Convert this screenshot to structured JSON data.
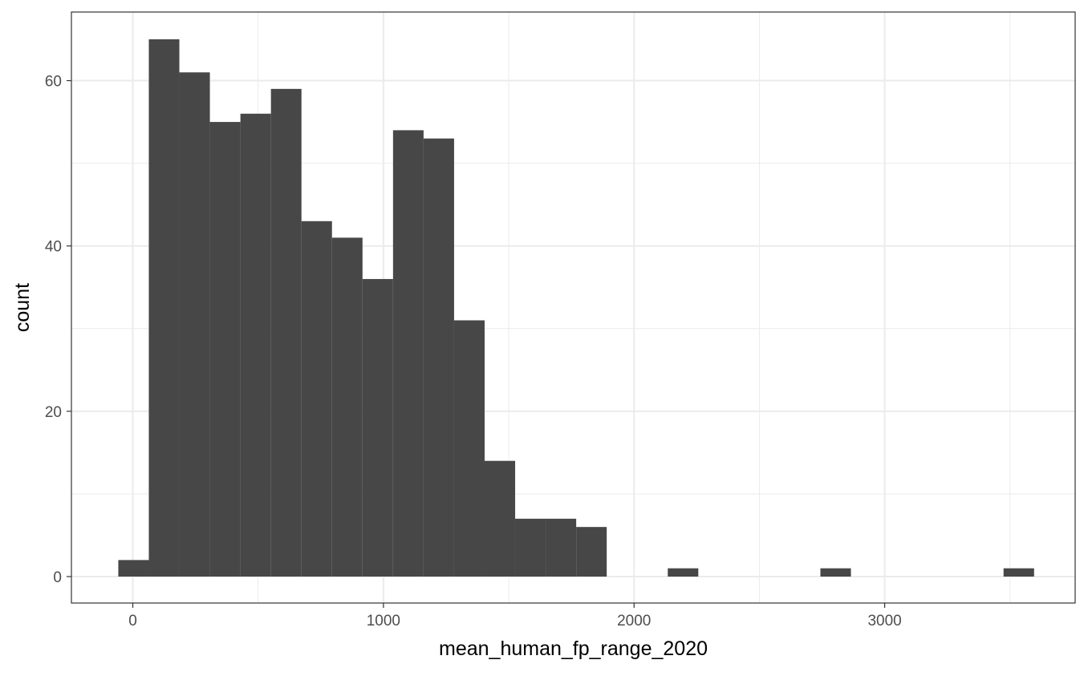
{
  "chart_data": {
    "type": "bar",
    "subtype": "histogram",
    "xlabel": "mean_human_fp_range_2020",
    "ylabel": "count",
    "xlim": [
      -245,
      3760
    ],
    "ylim": [
      -3.2,
      68.3
    ],
    "x_ticks": [
      0,
      1000,
      2000,
      3000
    ],
    "x_tick_labels": [
      "0",
      "1000",
      "2000",
      "3000"
    ],
    "y_ticks": [
      0,
      20,
      40,
      60
    ],
    "y_tick_labels": [
      "0",
      "20",
      "40",
      "60"
    ],
    "grid": true,
    "theme": "bw",
    "bar_color": "#474747",
    "bin_width": 121.8,
    "bins": [
      {
        "start": -57.9,
        "end": 63.9,
        "count": 2
      },
      {
        "start": 63.9,
        "end": 185.7,
        "count": 65
      },
      {
        "start": 185.7,
        "end": 307.5,
        "count": 61
      },
      {
        "start": 307.5,
        "end": 429.3,
        "count": 55
      },
      {
        "start": 429.3,
        "end": 551.1,
        "count": 56
      },
      {
        "start": 551.1,
        "end": 672.9,
        "count": 59
      },
      {
        "start": 672.9,
        "end": 794.7,
        "count": 43
      },
      {
        "start": 794.7,
        "end": 916.5,
        "count": 41
      },
      {
        "start": 916.5,
        "end": 1038.3,
        "count": 36
      },
      {
        "start": 1038.3,
        "end": 1160.1,
        "count": 54
      },
      {
        "start": 1160.1,
        "end": 1281.9,
        "count": 53
      },
      {
        "start": 1281.9,
        "end": 1403.7,
        "count": 31
      },
      {
        "start": 1403.7,
        "end": 1525.5,
        "count": 14
      },
      {
        "start": 1525.5,
        "end": 1647.3,
        "count": 7
      },
      {
        "start": 1647.3,
        "end": 1769.1,
        "count": 7
      },
      {
        "start": 1769.1,
        "end": 1890.9,
        "count": 6
      },
      {
        "start": 1890.9,
        "end": 2012.7,
        "count": 0
      },
      {
        "start": 2012.7,
        "end": 2134.5,
        "count": 0
      },
      {
        "start": 2134.5,
        "end": 2256.3,
        "count": 1
      },
      {
        "start": 2256.3,
        "end": 2378.1,
        "count": 0
      },
      {
        "start": 2378.1,
        "end": 2499.9,
        "count": 0
      },
      {
        "start": 2499.9,
        "end": 2621.7,
        "count": 0
      },
      {
        "start": 2621.7,
        "end": 2743.5,
        "count": 0
      },
      {
        "start": 2743.5,
        "end": 2865.3,
        "count": 1
      },
      {
        "start": 2865.3,
        "end": 2987.1,
        "count": 0
      },
      {
        "start": 2987.1,
        "end": 3108.9,
        "count": 0
      },
      {
        "start": 3108.9,
        "end": 3230.7,
        "count": 0
      },
      {
        "start": 3230.7,
        "end": 3352.5,
        "count": 0
      },
      {
        "start": 3352.5,
        "end": 3474.3,
        "count": 0
      },
      {
        "start": 3474.3,
        "end": 3596.1,
        "count": 1
      }
    ]
  }
}
